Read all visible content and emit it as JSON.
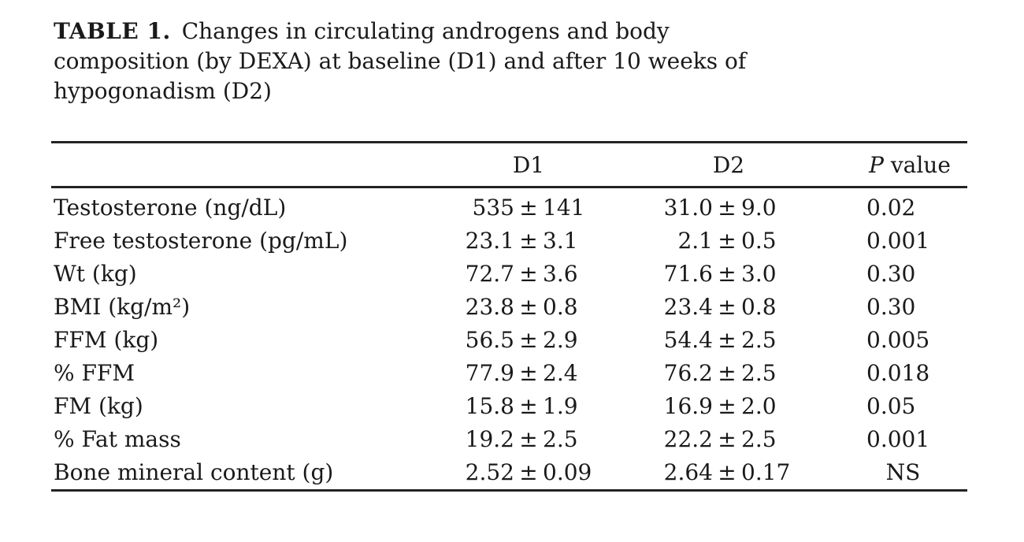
{
  "caption": {
    "label": "TABLE 1.",
    "line1": "Changes in circulating androgens and body",
    "line2": "composition (by DEXA) at baseline (D1) and after 10 weeks of",
    "line3": "hypogonadism (D2)"
  },
  "table": {
    "pm_sign": "±",
    "headers": {
      "d1": "D1",
      "d2": "D2",
      "p_italic": "P",
      "p_rest": " value"
    },
    "rows": [
      {
        "label": "Testosterone (ng/dL)",
        "d1": {
          "mean": "535",
          "sd": "141"
        },
        "d2": {
          "mean": "31.0",
          "sd": "9.0"
        },
        "p": "0.02"
      },
      {
        "label": "Free testosterone (pg/mL)",
        "d1": {
          "mean": "23.1",
          "sd": "3.1"
        },
        "d2": {
          "mean": "2.1",
          "sd": "0.5"
        },
        "p": "0.001"
      },
      {
        "label": "Wt (kg)",
        "d1": {
          "mean": "72.7",
          "sd": "3.6"
        },
        "d2": {
          "mean": "71.6",
          "sd": "3.0"
        },
        "p": "0.30"
      },
      {
        "label": "BMI (kg/m²)",
        "d1": {
          "mean": "23.8",
          "sd": "0.8"
        },
        "d2": {
          "mean": "23.4",
          "sd": "0.8"
        },
        "p": "0.30"
      },
      {
        "label": "FFM (kg)",
        "d1": {
          "mean": "56.5",
          "sd": "2.9"
        },
        "d2": {
          "mean": "54.4",
          "sd": "2.5"
        },
        "p": "0.005"
      },
      {
        "label": "% FFM",
        "d1": {
          "mean": "77.9",
          "sd": "2.4"
        },
        "d2": {
          "mean": "76.2",
          "sd": "2.5"
        },
        "p": "0.018"
      },
      {
        "label": "FM (kg)",
        "d1": {
          "mean": "15.8",
          "sd": "1.9"
        },
        "d2": {
          "mean": "16.9",
          "sd": "2.0"
        },
        "p": "0.05"
      },
      {
        "label": "% Fat mass",
        "d1": {
          "mean": "19.2",
          "sd": "2.5"
        },
        "d2": {
          "mean": "22.2",
          "sd": "2.5"
        },
        "p": "0.001"
      },
      {
        "label": "Bone mineral content (g)",
        "d1": {
          "mean": "2.52",
          "sd": "0.09"
        },
        "d2": {
          "mean": "2.64",
          "sd": "0.17"
        },
        "p": "NS"
      }
    ]
  },
  "colors": {
    "background": "#ffffff",
    "text": "#1a1a1a",
    "rule": "#232323"
  }
}
